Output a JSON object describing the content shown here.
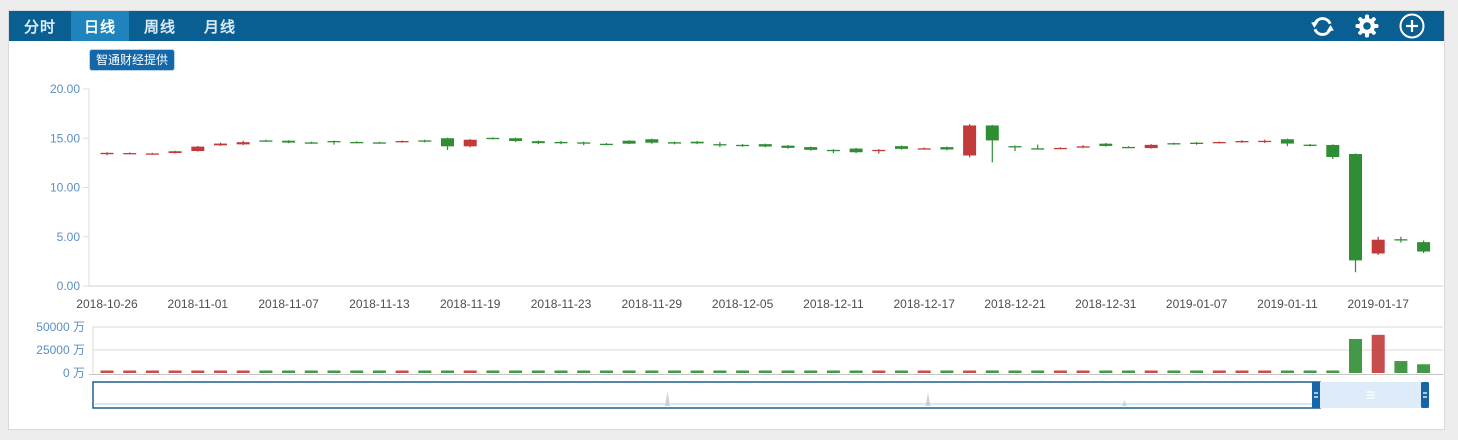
{
  "toolbar": {
    "tabs": [
      {
        "label": "分时",
        "active": false
      },
      {
        "label": "日线",
        "active": true
      },
      {
        "label": "周线",
        "active": false
      },
      {
        "label": "月线",
        "active": false
      }
    ],
    "icons": [
      "refresh",
      "settings",
      "add"
    ]
  },
  "badge": {
    "label": "智通财经提供"
  },
  "colors": {
    "topbar": "#0a5f92",
    "tab_active": "#1e84bb",
    "up": "#c23b3b",
    "down": "#2f8e33",
    "axis_label": "#5b8fc4",
    "date_label": "#4d4d4d",
    "axis_line": "#cfcfcf",
    "grid_line": "#d8d8d8",
    "nav_border": "#1e5f8c",
    "nav_selected_fill": "#ddecf8",
    "nav_handle": "#1566a8",
    "nav_baseline": "#b5d2e8",
    "nav_spike": "#d2d2d2"
  },
  "chart_data": {
    "type": "candlestick+volume",
    "price_axis": {
      "min": 0,
      "max": 20,
      "tick_labels": [
        "20.00",
        "15.00",
        "10.00",
        "5.00",
        "0.00"
      ],
      "tick_values": [
        20,
        15,
        10,
        5,
        0
      ]
    },
    "volume_axis": {
      "min": 0,
      "max": 50000,
      "unit": "万",
      "tick_labels": [
        "50000 万",
        "25000 万",
        "0 万"
      ],
      "tick_values": [
        50000,
        25000,
        0
      ]
    },
    "x_ticks": [
      {
        "label": "2018-10-26",
        "index": 0
      },
      {
        "label": "2018-11-01",
        "index": 4
      },
      {
        "label": "2018-11-07",
        "index": 8
      },
      {
        "label": "2018-11-13",
        "index": 12
      },
      {
        "label": "2018-11-19",
        "index": 16
      },
      {
        "label": "2018-11-23",
        "index": 20
      },
      {
        "label": "2018-11-29",
        "index": 24
      },
      {
        "label": "2018-12-05",
        "index": 28
      },
      {
        "label": "2018-12-11",
        "index": 32
      },
      {
        "label": "2018-12-17",
        "index": 36
      },
      {
        "label": "2018-12-21",
        "index": 40
      },
      {
        "label": "2018-12-31",
        "index": 44
      },
      {
        "label": "2019-01-07",
        "index": 48
      },
      {
        "label": "2019-01-11",
        "index": 52
      },
      {
        "label": "2019-01-17",
        "index": 56
      }
    ],
    "candle_format": [
      "open",
      "high",
      "low",
      "close",
      "volume_wan"
    ],
    "candles": [
      [
        13.38,
        13.58,
        13.28,
        13.52,
        600
      ],
      [
        13.45,
        13.56,
        13.4,
        13.5,
        420
      ],
      [
        13.42,
        13.52,
        13.36,
        13.46,
        380
      ],
      [
        13.5,
        13.74,
        13.45,
        13.68,
        550
      ],
      [
        13.7,
        14.22,
        13.65,
        14.15,
        900
      ],
      [
        14.28,
        14.55,
        14.22,
        14.46,
        700
      ],
      [
        14.38,
        14.75,
        14.3,
        14.6,
        760
      ],
      [
        14.78,
        14.86,
        14.64,
        14.7,
        500
      ],
      [
        14.75,
        14.8,
        14.5,
        14.56,
        520
      ],
      [
        14.58,
        14.66,
        14.44,
        14.52,
        400
      ],
      [
        14.72,
        14.78,
        14.35,
        14.65,
        480
      ],
      [
        14.62,
        14.7,
        14.5,
        14.56,
        380
      ],
      [
        14.58,
        14.64,
        14.45,
        14.52,
        360
      ],
      [
        14.6,
        14.78,
        14.54,
        14.72,
        450
      ],
      [
        14.78,
        14.86,
        14.58,
        14.68,
        420
      ],
      [
        15.0,
        15.06,
        13.8,
        14.18,
        1200
      ],
      [
        14.18,
        14.92,
        14.08,
        14.85,
        1100
      ],
      [
        15.04,
        15.1,
        14.88,
        14.96,
        500
      ],
      [
        15.0,
        15.06,
        14.62,
        14.72,
        600
      ],
      [
        14.7,
        14.76,
        14.4,
        14.5,
        520
      ],
      [
        14.62,
        14.72,
        14.4,
        14.52,
        480
      ],
      [
        14.58,
        14.66,
        14.3,
        14.46,
        440
      ],
      [
        14.44,
        14.52,
        14.28,
        14.38,
        380
      ],
      [
        14.75,
        14.8,
        14.4,
        14.45,
        560
      ],
      [
        14.9,
        14.96,
        14.44,
        14.55,
        600
      ],
      [
        14.6,
        14.66,
        14.38,
        14.46,
        420
      ],
      [
        14.65,
        14.72,
        14.4,
        14.48,
        450
      ],
      [
        14.4,
        14.62,
        14.1,
        14.32,
        520
      ],
      [
        14.33,
        14.42,
        14.14,
        14.26,
        400
      ],
      [
        14.4,
        14.46,
        14.08,
        14.16,
        480
      ],
      [
        14.25,
        14.32,
        13.94,
        14.02,
        500
      ],
      [
        14.1,
        14.16,
        13.74,
        13.82,
        540
      ],
      [
        13.82,
        13.88,
        13.5,
        13.76,
        460
      ],
      [
        13.95,
        14.02,
        13.48,
        13.58,
        580
      ],
      [
        13.7,
        13.9,
        13.44,
        13.82,
        500
      ],
      [
        14.2,
        14.26,
        13.84,
        13.92,
        520
      ],
      [
        13.9,
        14.06,
        13.84,
        13.98,
        380
      ],
      [
        14.1,
        14.16,
        13.78,
        13.86,
        460
      ],
      [
        13.25,
        16.45,
        13.05,
        16.3,
        2600
      ],
      [
        16.3,
        16.36,
        12.55,
        14.78,
        2800
      ],
      [
        14.2,
        14.26,
        13.7,
        14.14,
        900
      ],
      [
        13.98,
        14.35,
        13.9,
        13.94,
        600
      ],
      [
        13.95,
        14.08,
        13.88,
        14.02,
        380
      ],
      [
        14.06,
        14.3,
        13.98,
        14.18,
        420
      ],
      [
        14.45,
        14.52,
        14.14,
        14.22,
        700
      ],
      [
        14.12,
        14.2,
        14.0,
        14.06,
        360
      ],
      [
        14.0,
        14.4,
        13.95,
        14.33,
        520
      ],
      [
        14.5,
        14.56,
        14.34,
        14.42,
        380
      ],
      [
        14.55,
        14.62,
        14.34,
        14.42,
        420
      ],
      [
        14.55,
        14.68,
        14.48,
        14.62,
        360
      ],
      [
        14.64,
        14.8,
        14.54,
        14.72,
        400
      ],
      [
        14.68,
        14.86,
        14.52,
        14.74,
        420
      ],
      [
        14.9,
        14.96,
        14.2,
        14.46,
        800
      ],
      [
        14.35,
        14.42,
        14.18,
        14.26,
        500
      ],
      [
        14.32,
        14.38,
        12.9,
        13.1,
        1500
      ],
      [
        13.4,
        13.46,
        1.4,
        2.6,
        37000
      ],
      [
        3.3,
        5.0,
        3.15,
        4.7,
        41500
      ],
      [
        4.75,
        5.0,
        4.4,
        4.66,
        13000
      ],
      [
        4.45,
        4.62,
        3.35,
        3.5,
        9500
      ]
    ]
  },
  "navigator": {
    "selected_region": "right",
    "spikes_frac": [
      {
        "x": 0.43,
        "h": 0.7
      },
      {
        "x": 0.625,
        "h": 0.62
      },
      {
        "x": 0.772,
        "h": 0.25
      },
      {
        "x": 0.914,
        "h": 0.85
      }
    ]
  }
}
